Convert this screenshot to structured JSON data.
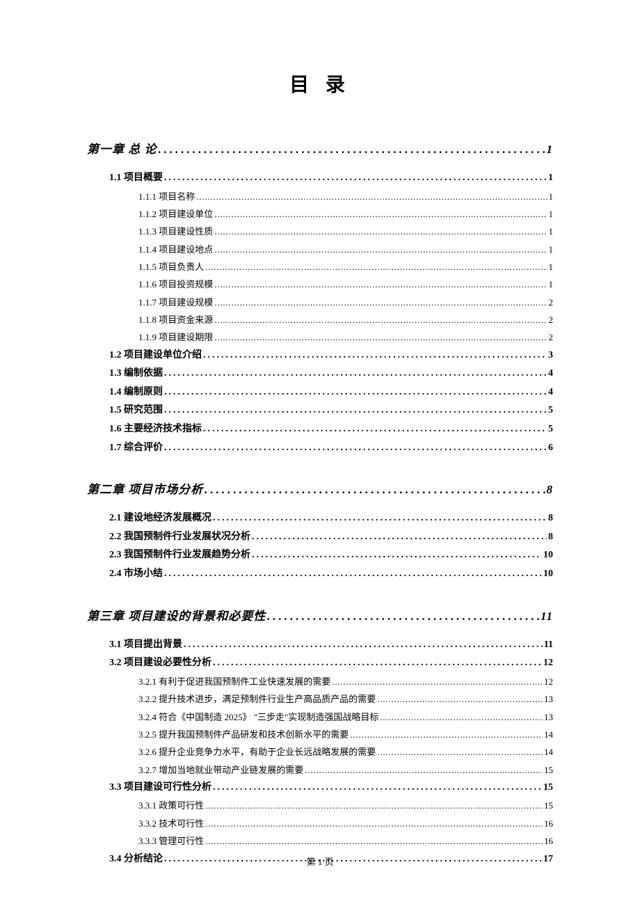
{
  "title": "目 录",
  "footer": "第 1 页",
  "entries": [
    {
      "level": 1,
      "label": "第一章 总 论",
      "page": "1"
    },
    {
      "level": 2,
      "label": "1.1 项目概要",
      "page": "1"
    },
    {
      "level": 3,
      "label": "1.1.1 项目名称",
      "page": "1"
    },
    {
      "level": 3,
      "label": "1.1.2 项目建设单位",
      "page": "1"
    },
    {
      "level": 3,
      "label": "1.1.3 项目建设性质",
      "page": "1"
    },
    {
      "level": 3,
      "label": "1.1.4 项目建设地点",
      "page": "1"
    },
    {
      "level": 3,
      "label": "1.1.5 项目负责人",
      "page": "1"
    },
    {
      "level": 3,
      "label": "1.1.6 项目投资规模",
      "page": "1"
    },
    {
      "level": 3,
      "label": "1.1.7 项目建设规模",
      "page": "2"
    },
    {
      "level": 3,
      "label": "1.1.8 项目资金来源",
      "page": "2"
    },
    {
      "level": 3,
      "label": "1.1.9 项目建设期限",
      "page": "2"
    },
    {
      "level": 2,
      "label": "1.2 项目建设单位介绍",
      "page": "3"
    },
    {
      "level": 2,
      "label": "1.3 编制依据",
      "page": "4"
    },
    {
      "level": 2,
      "label": "1.4 编制原则",
      "page": "4"
    },
    {
      "level": 2,
      "label": "1.5 研究范围",
      "page": "5"
    },
    {
      "level": 2,
      "label": "1.6 主要经济技术指标",
      "page": "5"
    },
    {
      "level": 2,
      "label": "1.7 综合评价",
      "page": "6"
    },
    {
      "level": 1,
      "label": "第二章 项目市场分析",
      "page": "8"
    },
    {
      "level": 2,
      "label": "2.1 建设地经济发展概况",
      "page": "8"
    },
    {
      "level": 2,
      "label": "2.2 我国预制件行业发展状况分析",
      "page": "8"
    },
    {
      "level": 2,
      "label": "2.3 我国预制件行业发展趋势分析",
      "page": "10"
    },
    {
      "level": 2,
      "label": "2.4 市场小结",
      "page": "10"
    },
    {
      "level": 1,
      "label": "第三章 项目建设的背景和必要性",
      "page": "11"
    },
    {
      "level": 2,
      "label": "3.1 项目提出背景",
      "page": "11"
    },
    {
      "level": 2,
      "label": "3.2 项目建设必要性分析",
      "page": "12"
    },
    {
      "level": 3,
      "label": "3.2.1 有利于促进我国预制件工业快速发展的需要",
      "page": "12"
    },
    {
      "level": 3,
      "label": "3.2.2 提升技术进步，满足预制件行业生产高品质产品的需要",
      "page": "13"
    },
    {
      "level": 3,
      "label": "3.2.4 符合《中国制造 2025》 \"三步走\"实现制造强国战略目标",
      "page": "13"
    },
    {
      "level": 3,
      "label": "3.2.5 提升我国预制件产品研发和技术创新水平的需要",
      "page": "14"
    },
    {
      "level": 3,
      "label": "3.2.6 提升企业竞争力水平，有助于企业长远战略发展的需要",
      "page": "14"
    },
    {
      "level": 3,
      "label": "3.2.7 增加当地就业带动产业链发展的需要",
      "page": "15"
    },
    {
      "level": 2,
      "label": "3.3 项目建设可行性分析",
      "page": "15"
    },
    {
      "level": 3,
      "label": "3.3.1 政策可行性",
      "page": "15"
    },
    {
      "level": 3,
      "label": "3.3.2 技术可行性",
      "page": "16"
    },
    {
      "level": 3,
      "label": "3.3.3 管理可行性",
      "page": "16"
    },
    {
      "level": 2,
      "label": "3.4 分析结论",
      "page": "17"
    }
  ]
}
